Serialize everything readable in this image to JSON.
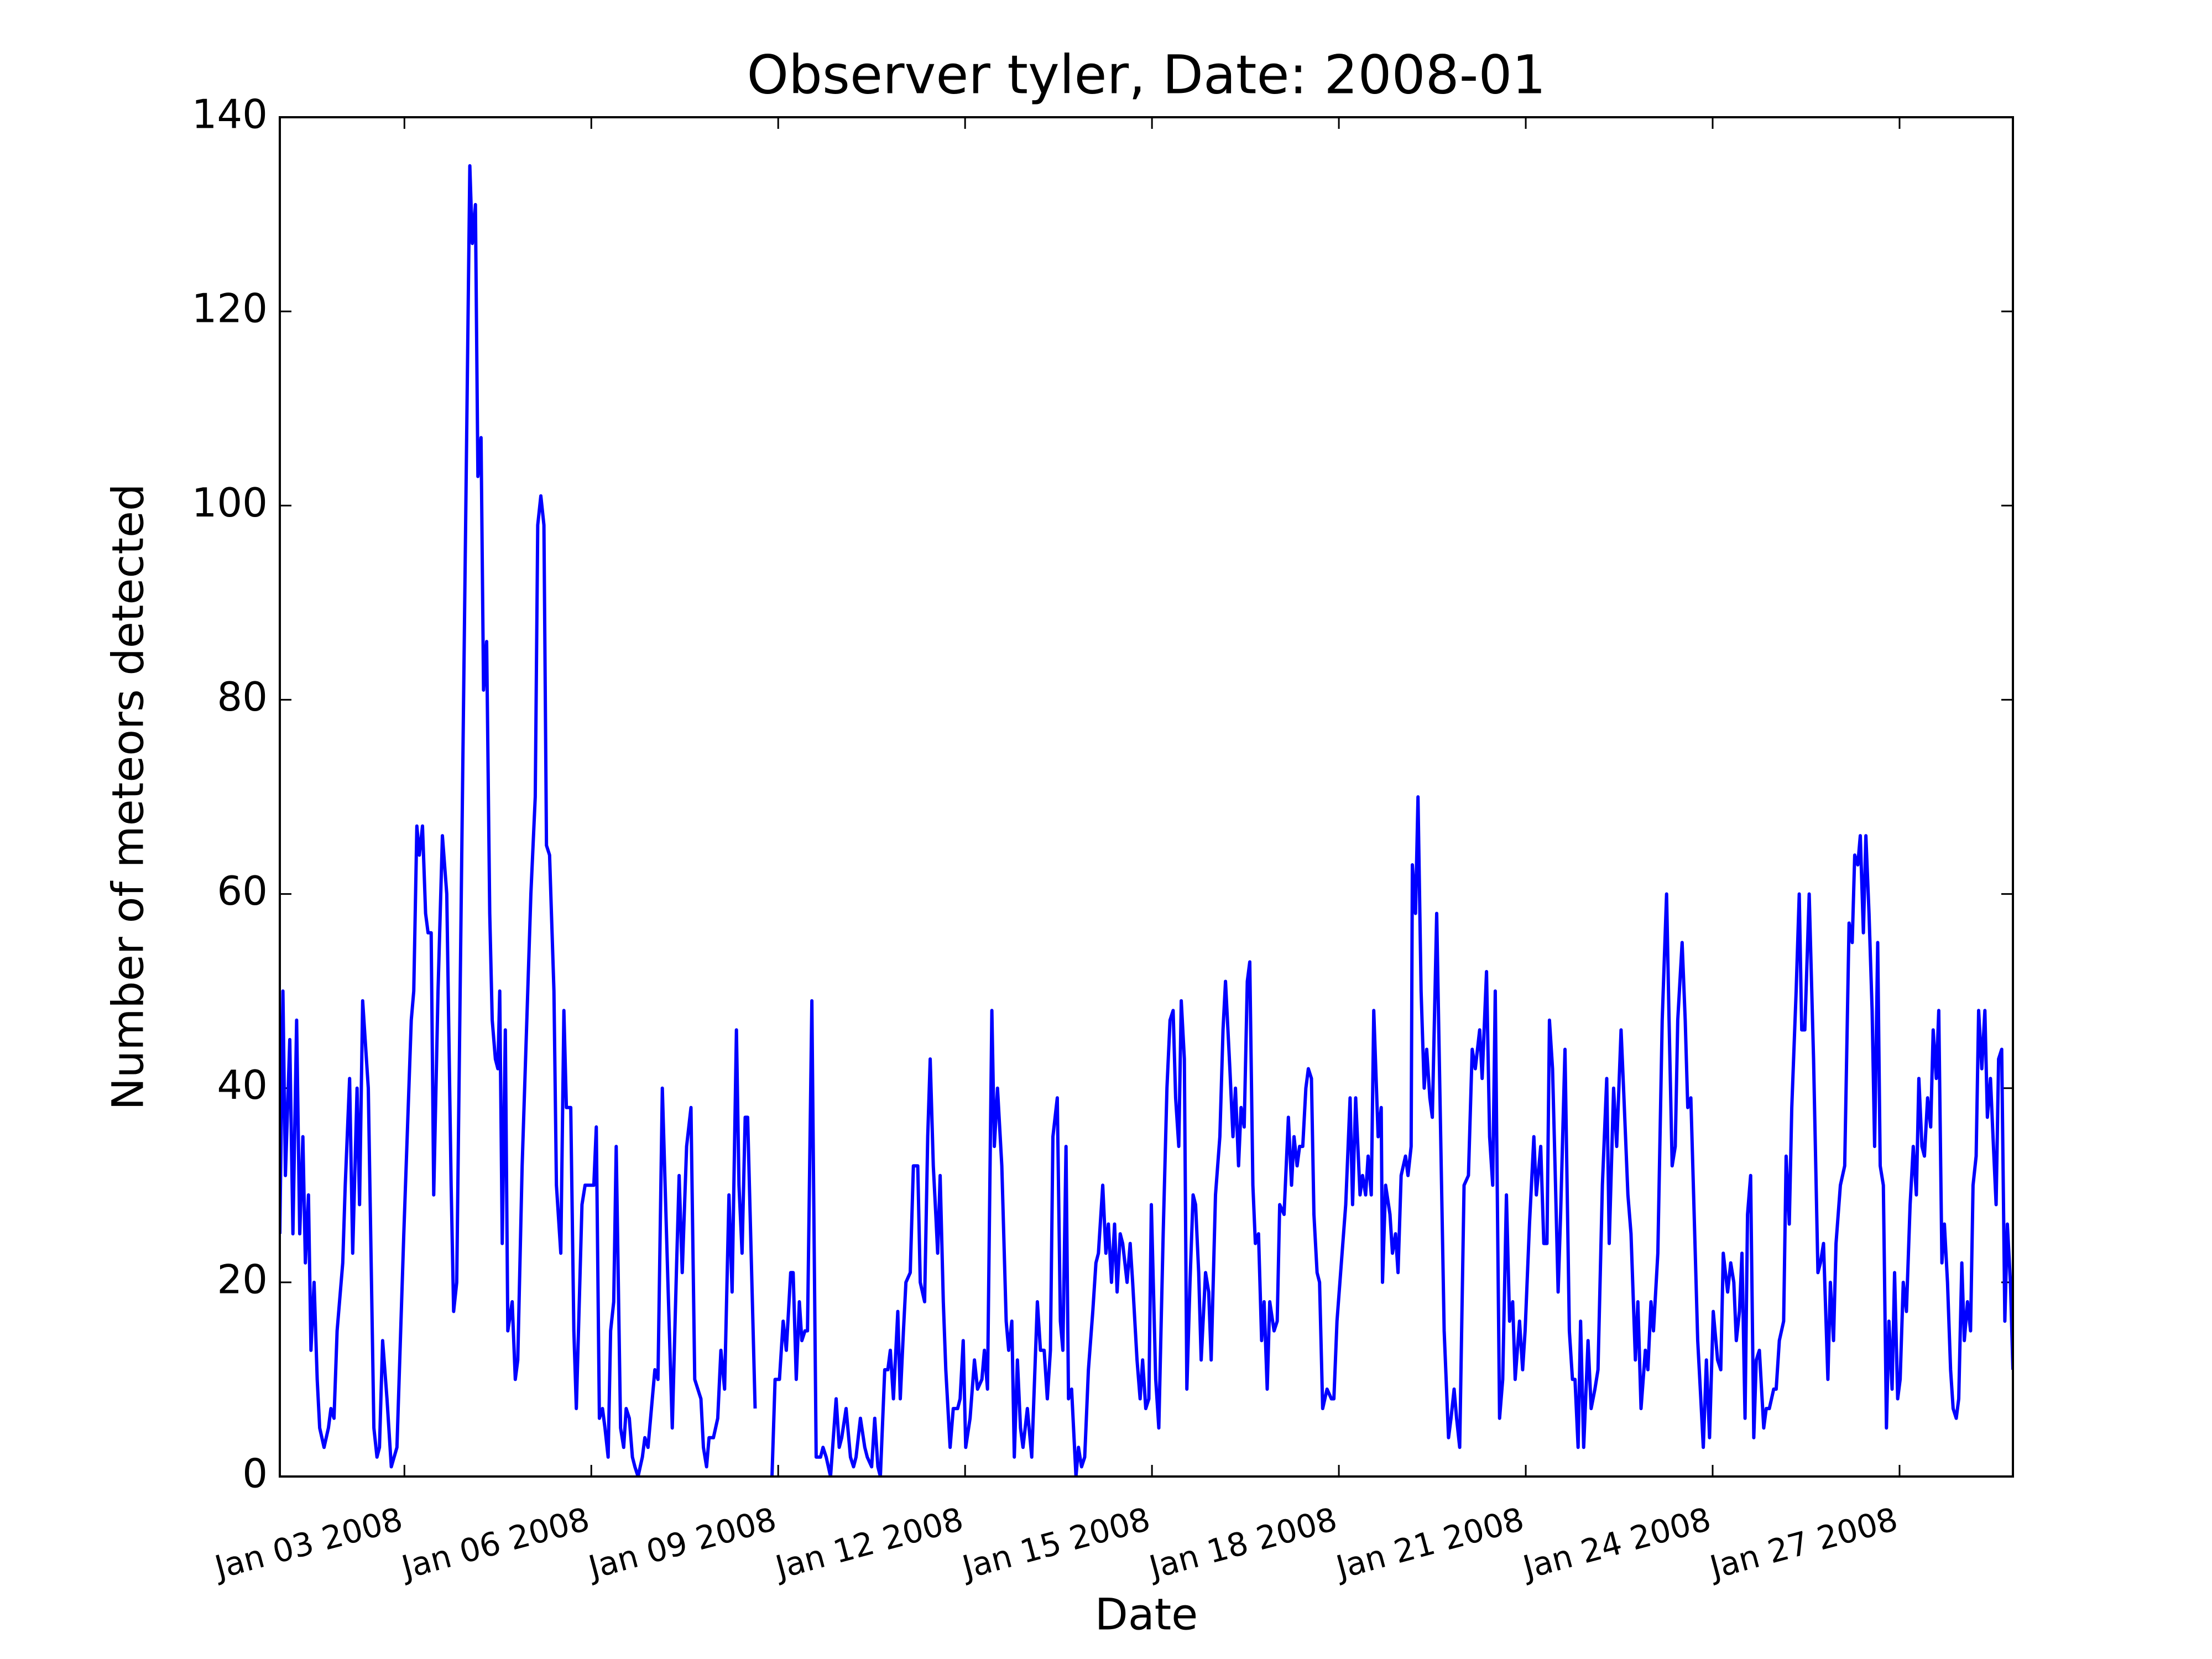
{
  "chart_data": {
    "type": "line",
    "title": "Observer tyler, Date: 2008-01",
    "xlabel": "Date",
    "ylabel": "Number of meteors detected",
    "color": "#0000ff",
    "xlim": [
      1,
      28.82
    ],
    "ylim": [
      0,
      140
    ],
    "xticks": [
      {
        "value": 3,
        "label": "Jan 03 2008"
      },
      {
        "value": 6,
        "label": "Jan 06 2008"
      },
      {
        "value": 9,
        "label": "Jan 09 2008"
      },
      {
        "value": 12,
        "label": "Jan 12 2008"
      },
      {
        "value": 15,
        "label": "Jan 15 2008"
      },
      {
        "value": 18,
        "label": "Jan 18 2008"
      },
      {
        "value": 21,
        "label": "Jan 21 2008"
      },
      {
        "value": 24,
        "label": "Jan 24 2008"
      },
      {
        "value": 27,
        "label": "Jan 27 2008"
      }
    ],
    "yticks": [
      0,
      20,
      40,
      60,
      80,
      100,
      120,
      140
    ],
    "grid": false,
    "x": [
      1.0,
      1.05,
      1.09,
      1.16,
      1.21,
      1.27,
      1.32,
      1.37,
      1.41,
      1.46,
      1.5,
      1.55,
      1.6,
      1.64,
      1.71,
      1.78,
      1.82,
      1.87,
      1.92,
      2.01,
      2.05,
      2.12,
      2.17,
      2.24,
      2.28,
      2.33,
      2.42,
      2.51,
      2.56,
      2.6,
      2.65,
      2.72,
      2.79,
      2.88,
      2.99,
      3.11,
      3.15,
      3.2,
      3.24,
      3.29,
      3.34,
      3.38,
      3.43,
      3.47,
      3.54,
      3.61,
      3.68,
      3.75,
      3.79,
      3.84,
      3.95,
      4.05,
      4.09,
      4.14,
      4.18,
      4.23,
      4.27,
      4.32,
      4.37,
      4.41,
      4.46,
      4.5,
      4.53,
      4.57,
      4.62,
      4.66,
      4.73,
      4.78,
      4.82,
      4.89,
      4.96,
      5.03,
      5.1,
      5.14,
      5.19,
      5.24,
      5.28,
      5.33,
      5.4,
      5.44,
      5.51,
      5.56,
      5.6,
      5.67,
      5.72,
      5.76,
      5.85,
      5.9,
      6.04,
      6.08,
      6.13,
      6.18,
      6.22,
      6.27,
      6.31,
      6.36,
      6.4,
      6.47,
      6.52,
      6.56,
      6.61,
      6.66,
      6.7,
      6.75,
      6.82,
      6.86,
      6.91,
      7.02,
      7.07,
      7.14,
      7.23,
      7.3,
      7.37,
      7.41,
      7.46,
      7.53,
      7.6,
      7.66,
      7.71,
      7.76,
      7.8,
      7.85,
      7.89,
      7.96,
      8.03,
      8.08,
      8.14,
      8.21,
      8.26,
      8.33,
      8.37,
      8.42,
      8.47,
      8.51,
      8.63,
      8.76,
      8.9,
      8.95,
      9.02,
      9.08,
      9.13,
      9.2,
      9.24,
      9.29,
      9.34,
      9.38,
      9.43,
      9.47,
      9.54,
      9.61,
      9.68,
      9.72,
      9.77,
      9.84,
      9.93,
      9.98,
      10.02,
      10.09,
      10.16,
      10.21,
      10.25,
      10.32,
      10.39,
      10.43,
      10.5,
      10.55,
      10.6,
      10.64,
      10.71,
      10.76,
      10.8,
      10.85,
      10.92,
      10.96,
      11.01,
      11.05,
      11.12,
      11.17,
      11.24,
      11.28,
      11.35,
      11.4,
      11.44,
      11.49,
      11.53,
      11.56,
      11.6,
      11.65,
      11.69,
      11.76,
      11.81,
      11.88,
      11.92,
      11.97,
      12.01,
      12.08,
      12.15,
      12.2,
      12.27,
      12.31,
      12.36,
      12.43,
      12.47,
      12.52,
      12.59,
      12.66,
      12.7,
      12.75,
      12.79,
      12.84,
      12.89,
      12.93,
      13.0,
      13.07,
      13.16,
      13.21,
      13.27,
      13.32,
      13.37,
      13.41,
      13.48,
      13.53,
      13.57,
      13.62,
      13.66,
      13.71,
      13.78,
      13.82,
      13.87,
      13.92,
      13.98,
      14.05,
      14.1,
      14.14,
      14.21,
      14.26,
      14.3,
      14.35,
      14.4,
      14.44,
      14.49,
      14.53,
      14.6,
      14.65,
      14.69,
      14.76,
      14.81,
      14.85,
      14.9,
      14.95,
      14.99,
      15.06,
      15.11,
      15.18,
      15.24,
      15.29,
      15.34,
      15.38,
      15.43,
      15.47,
      15.52,
      15.56,
      15.61,
      15.66,
      15.7,
      15.75,
      15.79,
      15.86,
      15.91,
      15.95,
      16.02,
      16.09,
      16.14,
      16.18,
      16.25,
      16.3,
      16.34,
      16.39,
      16.43,
      16.48,
      16.53,
      16.57,
      16.62,
      16.66,
      16.71,
      16.76,
      16.8,
      16.85,
      16.89,
      16.96,
      17.01,
      17.05,
      17.12,
      17.19,
      17.24,
      17.28,
      17.33,
      17.37,
      17.42,
      17.47,
      17.51,
      17.56,
      17.6,
      17.65,
      17.69,
      17.74,
      17.81,
      17.88,
      17.92,
      17.97,
      18.04,
      18.11,
      18.18,
      18.22,
      18.27,
      18.34,
      18.38,
      18.43,
      18.47,
      18.52,
      18.56,
      18.63,
      18.68,
      18.7,
      18.75,
      18.82,
      18.86,
      18.91,
      18.95,
      19.0,
      19.07,
      19.11,
      19.16,
      19.18,
      19.23,
      19.27,
      19.32,
      19.37,
      19.41,
      19.46,
      19.5,
      19.57,
      19.69,
      19.76,
      19.8,
      19.85,
      19.89,
      19.94,
      20.01,
      20.08,
      20.14,
      20.19,
      20.26,
      20.3,
      20.37,
      20.42,
      20.47,
      20.51,
      20.58,
      20.63,
      20.69,
      20.74,
      20.79,
      20.83,
      20.9,
      20.95,
      20.99,
      21.06,
      21.13,
      21.17,
      21.24,
      21.29,
      21.34,
      21.38,
      21.43,
      21.47,
      21.52,
      21.56,
      21.63,
      21.7,
      21.75,
      21.79,
      21.84,
      21.88,
      21.93,
      22.0,
      22.05,
      22.11,
      22.16,
      22.23,
      22.3,
      22.34,
      22.41,
      22.46,
      22.53,
      22.57,
      22.64,
      22.69,
      22.76,
      22.8,
      22.85,
      22.92,
      22.96,
      23.01,
      23.05,
      23.12,
      23.19,
      23.26,
      23.3,
      23.35,
      23.4,
      23.44,
      23.51,
      23.56,
      23.6,
      23.65,
      23.69,
      23.76,
      23.81,
      23.85,
      23.9,
      23.95,
      24.01,
      24.08,
      24.13,
      24.17,
      24.24,
      24.29,
      24.34,
      24.38,
      24.43,
      24.47,
      24.52,
      24.56,
      24.61,
      24.66,
      24.7,
      24.75,
      24.82,
      24.86,
      24.91,
      24.98,
      25.02,
      25.07,
      25.14,
      25.18,
      25.23,
      25.27,
      25.34,
      25.39,
      25.43,
      25.48,
      25.55,
      25.62,
      25.69,
      25.73,
      25.78,
      25.85,
      25.89,
      25.94,
      25.98,
      26.05,
      26.12,
      26.19,
      26.24,
      26.28,
      26.33,
      26.37,
      26.42,
      26.46,
      26.51,
      26.56,
      26.6,
      26.65,
      26.69,
      26.74,
      26.79,
      26.83,
      26.88,
      26.92,
      26.97,
      27.01,
      27.06,
      27.11,
      27.17,
      27.22,
      27.27,
      27.31,
      27.36,
      27.4,
      27.45,
      27.5,
      27.54,
      27.59,
      27.63,
      27.68,
      27.72,
      27.77,
      27.82,
      27.86,
      27.91,
      27.95,
      28.0,
      28.04,
      28.09,
      28.14,
      28.18,
      28.23,
      28.27,
      28.32,
      28.37,
      28.41,
      28.46,
      28.5,
      28.55,
      28.59,
      28.64,
      28.69,
      28.73,
      28.78,
      28.82
    ],
    "values": [
      25,
      50,
      31,
      45,
      25,
      47,
      25,
      35,
      22,
      29,
      13,
      20,
      10,
      5,
      3,
      5,
      7,
      6,
      15,
      22,
      30,
      41,
      23,
      40,
      28,
      49,
      40,
      5,
      2,
      3,
      14,
      8,
      1,
      3,
      25,
      47,
      50,
      67,
      64,
      67,
      58,
      56,
      56,
      29,
      50,
      66,
      60,
      30,
      17,
      20,
      80,
      135,
      127,
      131,
      103,
      107,
      81,
      86,
      58,
      47,
      43,
      42,
      50,
      24,
      46,
      15,
      18,
      10,
      12,
      32,
      46,
      60,
      70,
      98,
      101,
      98,
      65,
      64,
      50,
      30,
      23,
      48,
      38,
      38,
      15,
      7,
      28,
      30,
      30,
      36,
      6,
      7,
      5,
      2,
      15,
      18,
      34,
      5,
      3,
      7,
      6,
      2,
      1,
      0,
      2,
      4,
      3,
      11,
      10,
      40,
      20,
      5,
      22,
      31,
      21,
      34,
      38,
      10,
      9,
      8,
      3,
      1,
      4,
      4,
      6,
      13,
      9,
      29,
      19,
      46,
      30,
      23,
      37,
      37,
      7,
      null,
      0,
      10,
      10,
      16,
      13,
      21,
      21,
      10,
      18,
      14,
      15,
      15,
      49,
      2,
      2,
      3,
      2,
      0,
      8,
      3,
      4,
      7,
      2,
      1,
      2,
      6,
      3,
      2,
      1,
      6,
      1,
      0,
      11,
      11,
      13,
      8,
      17,
      8,
      15,
      20,
      21,
      32,
      32,
      20,
      18,
      35,
      43,
      32,
      27,
      23,
      31,
      18,
      11,
      3,
      7,
      7,
      8,
      14,
      3,
      6,
      12,
      9,
      10,
      13,
      9,
      48,
      34,
      40,
      32,
      16,
      13,
      16,
      2,
      12,
      5,
      3,
      7,
      2,
      18,
      13,
      13,
      8,
      13,
      35,
      39,
      16,
      13,
      34,
      8,
      9,
      0,
      3,
      1,
      2,
      11,
      17,
      22,
      23,
      30,
      23,
      26,
      20,
      26,
      19,
      25,
      24,
      20,
      24,
      20,
      12,
      8,
      12,
      7,
      8,
      28,
      10,
      5,
      25,
      40,
      47,
      48,
      39,
      34,
      49,
      43,
      9,
      20,
      29,
      28,
      21,
      12,
      21,
      19,
      12,
      29,
      35,
      46,
      51,
      42,
      35,
      40,
      32,
      38,
      36,
      51,
      53,
      30,
      24,
      25,
      14,
      18,
      9,
      18,
      15,
      16,
      28,
      27,
      37,
      30,
      35,
      32,
      34,
      34,
      40,
      42,
      41,
      27,
      21,
      20,
      7,
      9,
      8,
      8,
      16,
      22,
      28,
      39,
      28,
      39,
      29,
      31,
      29,
      33,
      29,
      48,
      35,
      38,
      20,
      30,
      27,
      23,
      25,
      21,
      31,
      33,
      31,
      34,
      63,
      58,
      70,
      50,
      40,
      44,
      39,
      37,
      58,
      15,
      4,
      6,
      9,
      6,
      3,
      30,
      31,
      44,
      42,
      46,
      41,
      52,
      35,
      30,
      50,
      6,
      10,
      29,
      16,
      18,
      10,
      16,
      11,
      15,
      26,
      35,
      29,
      34,
      24,
      24,
      47,
      42,
      32,
      19,
      27,
      44,
      15,
      10,
      10,
      3,
      16,
      3,
      14,
      7,
      9,
      11,
      30,
      41,
      24,
      40,
      34,
      46,
      40,
      29,
      25,
      12,
      18,
      7,
      13,
      11,
      18,
      15,
      23,
      47,
      60,
      47,
      32,
      34,
      47,
      55,
      47,
      38,
      39,
      30,
      14,
      8,
      3,
      12,
      4,
      17,
      12,
      11,
      23,
      19,
      22,
      20,
      14,
      17,
      23,
      6,
      27,
      31,
      4,
      12,
      13,
      5,
      7,
      7,
      9,
      9,
      14,
      16,
      33,
      26,
      38,
      50,
      60,
      46,
      46,
      60,
      43,
      21,
      22,
      24,
      10,
      20,
      14,
      24,
      30,
      32,
      57,
      55,
      64,
      63,
      66,
      56,
      66,
      58,
      48,
      34,
      55,
      32,
      30,
      5,
      16,
      9,
      21,
      8,
      10,
      20,
      17,
      28,
      34,
      29,
      41,
      34,
      33,
      39,
      36,
      46,
      41,
      48,
      22,
      26,
      20,
      11,
      7,
      6,
      8,
      22,
      14,
      18,
      15,
      30,
      33,
      48,
      42,
      48,
      37,
      41,
      35,
      28,
      43,
      44,
      16,
      26,
      20,
      11
    ]
  }
}
